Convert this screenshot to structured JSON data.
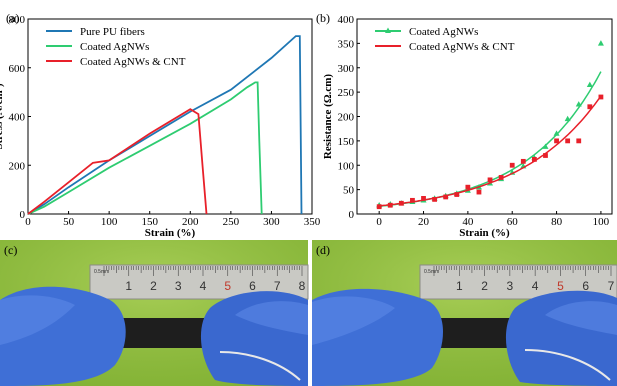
{
  "chart_data": [
    {
      "panel": "(a)",
      "type": "line",
      "xlabel": "Strain (%)",
      "ylabel": "Stress (N/cm²)",
      "xlim": [
        0,
        350
      ],
      "ylim": [
        0,
        800
      ],
      "xticks": [
        "0",
        "50",
        "100",
        "150",
        "200",
        "250",
        "300",
        "350"
      ],
      "yticks": [
        "0",
        "200",
        "400",
        "600",
        "800"
      ],
      "legend_position": "top-left",
      "series": [
        {
          "name": "Pure PU fibers",
          "color": "#1f77b4",
          "x": [
            0,
            20,
            50,
            100,
            150,
            200,
            250,
            300,
            330,
            335,
            337
          ],
          "y": [
            0,
            40,
            110,
            220,
            320,
            420,
            510,
            640,
            730,
            730,
            0
          ]
        },
        {
          "name": "Coated AgNWs",
          "color": "#2ecc71",
          "x": [
            0,
            20,
            50,
            100,
            150,
            200,
            250,
            270,
            280,
            283,
            285,
            288
          ],
          "y": [
            0,
            30,
            90,
            190,
            280,
            370,
            470,
            520,
            540,
            540,
            300,
            0
          ]
        },
        {
          "name": "Coated AgNWs & CNT",
          "color": "#e8202a",
          "x": [
            0,
            20,
            50,
            80,
            100,
            150,
            200,
            210,
            215,
            220
          ],
          "y": [
            0,
            50,
            130,
            210,
            220,
            330,
            430,
            410,
            200,
            0
          ]
        }
      ]
    },
    {
      "panel": "(b)",
      "type": "scatter",
      "xlabel": "Strain (%)",
      "ylabel": "Resistance (Ω.cm)",
      "xlim": [
        -10,
        105
      ],
      "ylim": [
        0,
        400
      ],
      "xticks": [
        "0",
        "20",
        "40",
        "60",
        "80",
        "100"
      ],
      "yticks": [
        "0",
        "50",
        "100",
        "150",
        "200",
        "250",
        "300",
        "350",
        "400"
      ],
      "legend_position": "top-left",
      "series": [
        {
          "name": "Coated AgNWs",
          "color": "#2ecc71",
          "marker": "triangle",
          "x": [
            0,
            5,
            10,
            15,
            20,
            25,
            30,
            35,
            40,
            45,
            50,
            55,
            60,
            65,
            70,
            75,
            80,
            85,
            90,
            95,
            100
          ],
          "y": [
            18,
            20,
            22,
            25,
            28,
            32,
            37,
            42,
            48,
            55,
            63,
            72,
            85,
            98,
            115,
            138,
            165,
            195,
            225,
            265,
            350
          ]
        },
        {
          "name": "Coated AgNWs & CNT",
          "color": "#e8202a",
          "marker": "square",
          "x": [
            0,
            5,
            10,
            15,
            20,
            25,
            30,
            35,
            40,
            45,
            50,
            55,
            60,
            65,
            70,
            75,
            80,
            85,
            90,
            95,
            100
          ],
          "y": [
            15,
            18,
            22,
            28,
            32,
            30,
            35,
            40,
            55,
            45,
            70,
            75,
            100,
            108,
            112,
            120,
            150,
            150,
            150,
            220,
            240
          ]
        }
      ]
    }
  ],
  "panels": {
    "a_label": "(a)",
    "b_label": "(b)",
    "c_label": "(c)",
    "d_label": "(d)"
  },
  "photos": {
    "c": {
      "ruler_numbers": [
        "1",
        "2",
        "3",
        "4",
        "5",
        "6",
        "7",
        "8"
      ],
      "ruler_unit": "0.5mm"
    },
    "d": {
      "ruler_numbers": [
        "1",
        "2",
        "3",
        "4",
        "5",
        "6",
        "7"
      ],
      "ruler_unit": "0.5mm"
    }
  }
}
